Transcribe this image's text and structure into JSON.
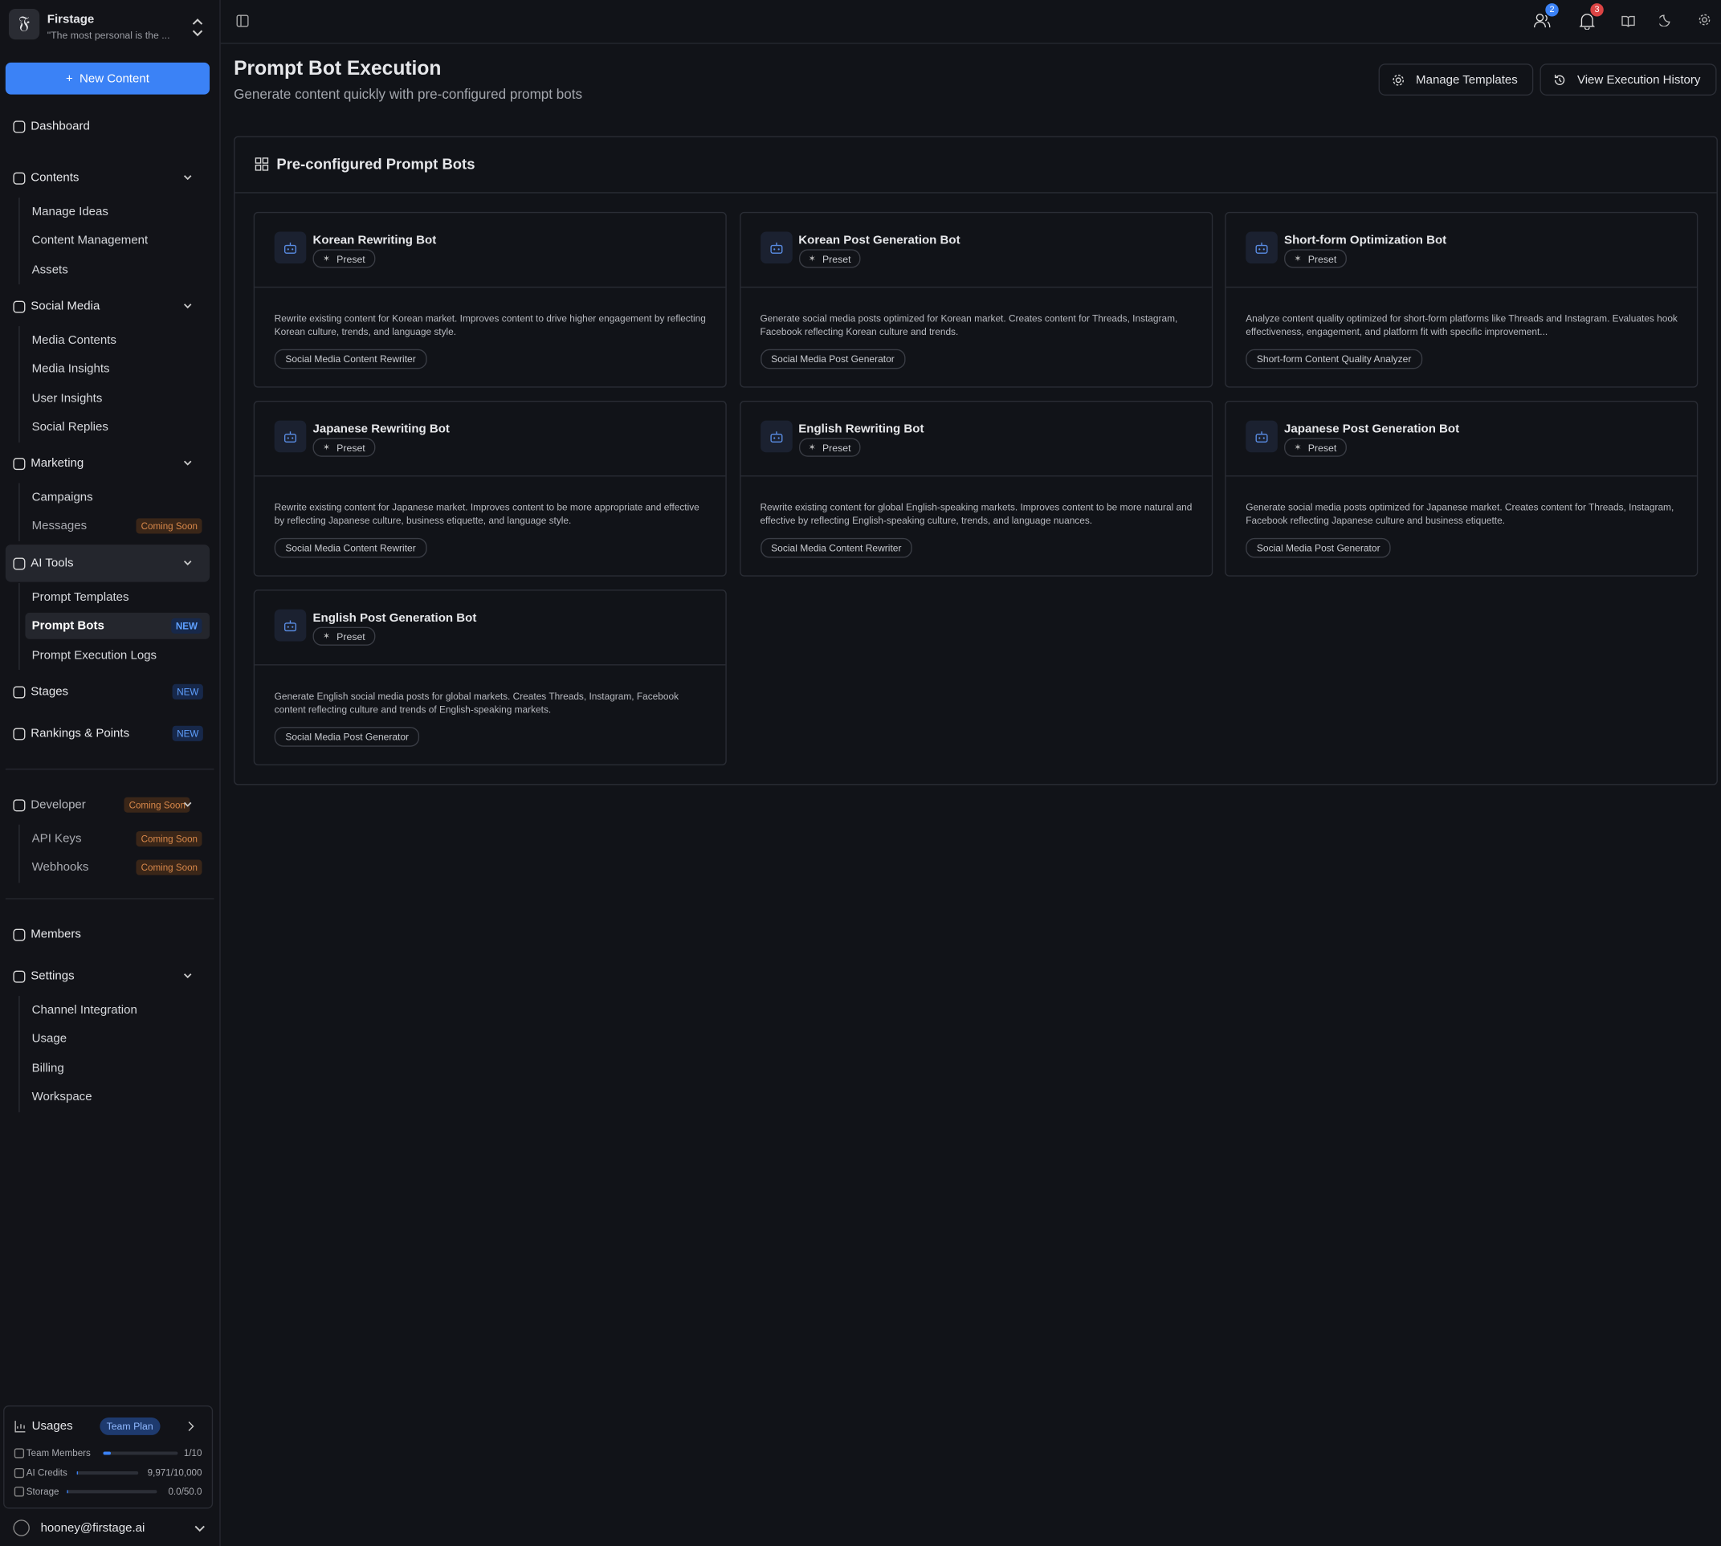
{
  "workspace": {
    "name": "Firstage",
    "tagline": "\"The most personal is the ..."
  },
  "new_content": "New Content",
  "nav": [
    {
      "label": "Dashboard"
    },
    {
      "label": "Contents",
      "children": [
        {
          "label": "Manage Ideas"
        },
        {
          "label": "Content Management"
        },
        {
          "label": "Assets"
        }
      ]
    },
    {
      "label": "Social Media",
      "children": [
        {
          "label": "Media Contents"
        },
        {
          "label": "Media Insights"
        },
        {
          "label": "User Insights"
        },
        {
          "label": "Social Replies"
        }
      ]
    },
    {
      "label": "Marketing",
      "children": [
        {
          "label": "Campaigns"
        },
        {
          "label": "Messages",
          "badge": "Coming Soon"
        }
      ]
    },
    {
      "label": "AI Tools",
      "children": [
        {
          "label": "Prompt Templates"
        },
        {
          "label": "Prompt Bots",
          "badge": "NEW"
        },
        {
          "label": "Prompt Execution Logs"
        }
      ]
    },
    {
      "label": "Stages",
      "badge": "NEW"
    },
    {
      "label": "Rankings & Points",
      "badge": "NEW"
    },
    {
      "label": "Developer",
      "badge": "Coming Soon",
      "children": [
        {
          "label": "API Keys",
          "badge": "Coming Soon"
        },
        {
          "label": "Webhooks",
          "badge": "Coming Soon"
        }
      ]
    },
    {
      "label": "Members"
    },
    {
      "label": "Settings",
      "children": [
        {
          "label": "Channel Integration"
        },
        {
          "label": "Usage"
        },
        {
          "label": "Billing"
        },
        {
          "label": "Workspace"
        }
      ]
    }
  ],
  "usage": {
    "title": "Usages",
    "plan": "Team Plan",
    "rows": [
      {
        "label": "Team Members",
        "value": "1/10"
      },
      {
        "label": "AI Credits",
        "value": "9,971/10,000"
      },
      {
        "label": "Storage",
        "value": "0.0/50.0"
      }
    ]
  },
  "user": "hooney@firstage.ai",
  "topbar": {
    "members_badge": "2",
    "notifications_badge": "3"
  },
  "header": {
    "title": "Prompt Bot Execution",
    "subtitle": "Generate content quickly with pre-configured prompt bots",
    "buttons": [
      "Manage Templates",
      "View Execution History"
    ]
  },
  "section": {
    "title": "Pre-configured Prompt Bots"
  },
  "bots": [
    {
      "name": "Korean Rewriting Bot",
      "tag": "Preset",
      "description": "Rewrite existing content for Korean market. Improves content to drive higher engagement by reflecting Korean culture, trends, and language style.",
      "category": "Social Media Content Rewriter"
    },
    {
      "name": "Korean Post Generation Bot",
      "tag": "Preset",
      "description": "Generate social media posts optimized for Korean market. Creates content for Threads, Instagram, Facebook reflecting Korean culture and trends.",
      "category": "Social Media Post Generator"
    },
    {
      "name": "Short-form Optimization Bot",
      "tag": "Preset",
      "description": "Analyze content quality optimized for short-form platforms like Threads and Instagram. Evaluates hook effectiveness, engagement, and platform fit with specific improvement...",
      "category": "Short-form Content Quality Analyzer"
    },
    {
      "name": "Japanese Rewriting Bot",
      "tag": "Preset",
      "description": "Rewrite existing content for Japanese market. Improves content to be more appropriate and effective by reflecting Japanese culture, business etiquette, and language style.",
      "category": "Social Media Content Rewriter"
    },
    {
      "name": "English Rewriting Bot",
      "tag": "Preset",
      "description": "Rewrite existing content for global English-speaking markets. Improves content to be more natural and effective by reflecting English-speaking culture, trends, and language nuances.",
      "category": "Social Media Content Rewriter"
    },
    {
      "name": "Japanese Post Generation Bot",
      "tag": "Preset",
      "description": "Generate social media posts optimized for Japanese market. Creates content for Threads, Instagram, Facebook reflecting Japanese culture and business etiquette.",
      "category": "Social Media Post Generator"
    },
    {
      "name": "English Post Generation Bot",
      "tag": "Preset",
      "description": "Generate English social media posts for global markets. Creates Threads, Instagram, Facebook content reflecting culture and trends of English-speaking markets.",
      "category": "Social Media Post Generator"
    }
  ]
}
